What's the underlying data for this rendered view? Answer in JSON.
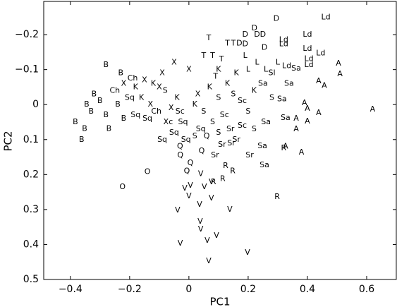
{
  "chart_data": {
    "type": "scatter",
    "xlabel": "PC1",
    "ylabel": "PC2",
    "xlim": [
      -0.49,
      0.7
    ],
    "ylim": [
      -0.295,
      0.5
    ],
    "y_inverted": true,
    "color": "#000000",
    "xticks": [
      {
        "value": -0.4,
        "label": "−0.4"
      },
      {
        "value": -0.2,
        "label": "−0.2"
      },
      0,
      0.2,
      0.4,
      0.6
    ],
    "yticks": [
      {
        "value": -0.2,
        "label": "−0.2"
      },
      {
        "value": -0.1,
        "label": "−0.1"
      },
      0,
      0.1,
      0.2,
      0.3,
      0.4,
      0.5
    ],
    "point_labels": [
      "D",
      "Ld",
      "D",
      "D",
      "D",
      "D",
      "T",
      "T",
      "T",
      "D",
      "D",
      "D",
      "Ld",
      "Ld",
      "Ld",
      "Ld",
      "Ld",
      "Ld",
      "Ld",
      "A",
      "A",
      "A",
      "A",
      "A",
      "A",
      "A",
      "A",
      "A",
      "A",
      "A",
      "A",
      "A",
      "Sa",
      "Sa",
      "Sa",
      "Sa",
      "Sa",
      "Sa",
      "Sr",
      "Sr",
      "Sr",
      "Sr",
      "R",
      "R",
      "R",
      "R",
      "R",
      "R",
      "Q",
      "Q",
      "Q",
      "Q",
      "O",
      "O",
      "V",
      "V",
      "V",
      "V",
      "V",
      "V",
      "V",
      "V",
      "V",
      "V",
      "V",
      "V",
      "V",
      "V",
      "V",
      "V",
      "V",
      "T",
      "T",
      "T",
      "L",
      "L",
      "L",
      "L",
      "K",
      "X",
      "X",
      "X",
      "Ch",
      "B",
      "B",
      "B",
      "B",
      "B",
      "B",
      "B",
      "L",
      "Ld",
      "B",
      "B",
      "Ch",
      "X",
      "K",
      "X",
      "K",
      "X",
      "S",
      "Sq",
      "B",
      "K",
      "X",
      "Ch",
      "Sq",
      "B",
      "B",
      "Sq",
      "X",
      "Sc",
      "K",
      "Xc",
      "Sq",
      "K",
      "S",
      "X",
      "K",
      "S",
      "T",
      "K",
      "S",
      "Sc",
      "S",
      "K",
      "Sa",
      "S",
      "Sc",
      "S",
      "Sq",
      "Q",
      "S",
      "Sr",
      "Sc",
      "S",
      "Sa",
      "Sq",
      "Sq",
      "Q",
      "S",
      "Sr",
      "Sl",
      "K",
      "Sq",
      "B"
    ],
    "x": [
      0.295,
      0.462,
      0.221,
      0.19,
      0.23,
      0.25,
      0.067,
      0.13,
      0.15,
      0.17,
      0.19,
      0.255,
      0.32,
      0.32,
      0.4,
      0.4,
      0.445,
      0.405,
      0.405,
      0.505,
      0.51,
      0.438,
      0.457,
      0.39,
      0.4,
      0.438,
      0.62,
      0.362,
      0.4,
      0.362,
      0.326,
      0.38,
      0.362,
      0.338,
      0.314,
      0.326,
      0.248,
      0.255,
      0.205,
      0.088,
      0.112,
      0.143,
      0.32,
      0.298,
      0.124,
      0.148,
      0.114,
      0.083,
      -0.029,
      0.005,
      -0.007,
      0.043,
      -0.14,
      -0.224,
      -0.014,
      0.005,
      0.0,
      0.04,
      0.052,
      0.076,
      0.036,
      0.076,
      -0.038,
      0.138,
      0.038,
      0.04,
      0.093,
      -0.029,
      0.062,
      0.198,
      0.067,
      0.05,
      0.08,
      0.11,
      0.19,
      0.23,
      0.26,
      0.2,
      0.1,
      -0.05,
      0.0,
      -0.09,
      -0.19,
      -0.28,
      -0.383,
      -0.362,
      -0.352,
      -0.27,
      -0.345,
      -0.33,
      0.3,
      0.33,
      -0.32,
      -0.3,
      -0.25,
      -0.22,
      -0.18,
      -0.15,
      -0.12,
      -0.1,
      -0.08,
      -0.2,
      -0.24,
      -0.16,
      -0.13,
      -0.11,
      -0.18,
      -0.28,
      -0.22,
      -0.14,
      -0.06,
      -0.03,
      -0.04,
      -0.07,
      -0.02,
      0.02,
      0.05,
      0.03,
      0.07,
      0.1,
      0.09,
      0.13,
      0.15,
      0.18,
      0.2,
      0.22,
      0.25,
      0.28,
      0.12,
      0.08,
      0.04,
      0.06,
      0.1,
      0.14,
      0.18,
      0.22,
      0.26,
      -0.05,
      -0.01,
      -0.03,
      0.02,
      0.16,
      0.28,
      0.16,
      -0.09,
      -0.23
    ],
    "y": [
      -0.246,
      -0.25,
      -0.218,
      -0.2,
      -0.2,
      -0.2,
      -0.19,
      -0.175,
      -0.175,
      -0.175,
      -0.173,
      -0.163,
      -0.185,
      -0.173,
      -0.2,
      -0.16,
      -0.147,
      -0.131,
      -0.113,
      -0.117,
      -0.087,
      -0.067,
      -0.054,
      -0.004,
      0.012,
      0.024,
      0.014,
      0.04,
      0.048,
      0.07,
      0.12,
      0.137,
      -0.103,
      -0.06,
      -0.016,
      0.038,
      0.119,
      0.173,
      0.145,
      0.145,
      0.115,
      0.111,
      0.125,
      0.264,
      0.175,
      0.19,
      0.212,
      0.222,
      0.145,
      0.167,
      0.19,
      0.133,
      0.192,
      0.236,
      0.24,
      0.232,
      0.262,
      0.198,
      0.236,
      0.222,
      0.286,
      0.268,
      0.302,
      0.3,
      0.335,
      0.357,
      0.375,
      0.397,
      0.389,
      0.423,
      0.448,
      -0.14,
      -0.14,
      -0.13,
      -0.14,
      -0.12,
      -0.1,
      -0.1,
      -0.1,
      -0.12,
      -0.1,
      -0.09,
      -0.075,
      -0.113,
      0.05,
      0.1,
      0.069,
      0.069,
      0.0,
      0.02,
      -0.12,
      -0.11,
      -0.03,
      -0.01,
      -0.04,
      -0.06,
      -0.05,
      -0.07,
      -0.06,
      -0.05,
      -0.04,
      -0.02,
      0.0,
      -0.02,
      0.0,
      0.02,
      0.03,
      0.03,
      0.04,
      0.04,
      0.01,
      0.02,
      -0.02,
      0.05,
      0.05,
      0.0,
      0.02,
      -0.03,
      -0.05,
      -0.02,
      -0.08,
      -0.06,
      -0.03,
      -0.01,
      0.02,
      -0.04,
      -0.06,
      -0.02,
      0.03,
      0.05,
      0.07,
      0.09,
      0.08,
      0.07,
      0.06,
      0.07,
      0.05,
      0.08,
      0.1,
      0.12,
      0.09,
      0.1,
      -0.09,
      -0.09,
      0.1,
      -0.09
    ]
  }
}
